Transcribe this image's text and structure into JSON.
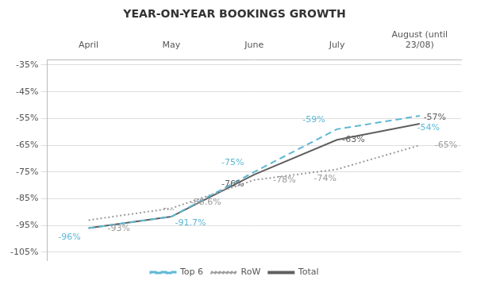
{
  "chart_data": {
    "type": "line",
    "title": "YEAR-ON-YEAR BOOKINGS GROWTH",
    "categories": [
      "April",
      "May",
      "June",
      "July",
      "August (until\n23/08)"
    ],
    "series": [
      {
        "name": "Top 6",
        "color": "#5DB8D5",
        "line_style": "dashed",
        "values": [
          -96,
          -91.7,
          -75,
          -59,
          -54
        ],
        "value_labels": [
          "-96%",
          "-91.7%",
          "-75%",
          "-59%",
          "-54%"
        ]
      },
      {
        "name": "RoW",
        "color": "#9B9B9B",
        "line_style": "dotted",
        "values": [
          -93,
          -88.6,
          -78,
          -74,
          -65
        ],
        "value_labels": [
          "-93%",
          "-88.6%",
          "-78%",
          "-74%",
          "-65%"
        ]
      },
      {
        "name": "Total",
        "color": "#606060",
        "line_style": "solid",
        "values": [
          -96,
          -91.7,
          -76,
          -63,
          -57
        ],
        "value_labels": [
          null,
          null,
          "-76%",
          "-63%",
          "-57%"
        ]
      }
    ],
    "annotations": [
      {
        "text": "-...",
        "x": "May",
        "y": -91.7
      }
    ],
    "ylim": [
      -108,
      -33
    ],
    "yticks": [
      {
        "value": -105,
        "label": "-105%"
      },
      {
        "value": -95,
        "label": "-95%"
      },
      {
        "value": -85,
        "label": "-85%"
      },
      {
        "value": -75,
        "label": "-75%"
      },
      {
        "value": -65,
        "label": "-65%"
      },
      {
        "value": -55,
        "label": "-55%"
      },
      {
        "value": -45,
        "label": "-45%"
      },
      {
        "value": -35,
        "label": "-35%"
      }
    ],
    "grid": true,
    "legend": "bottom"
  }
}
